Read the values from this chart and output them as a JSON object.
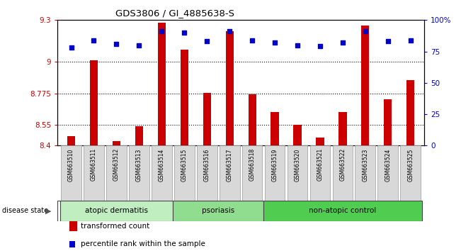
{
  "title": "GDS3806 / GI_4885638-S",
  "samples": [
    "GSM663510",
    "GSM663511",
    "GSM663512",
    "GSM663513",
    "GSM663514",
    "GSM663515",
    "GSM663516",
    "GSM663517",
    "GSM663518",
    "GSM663519",
    "GSM663520",
    "GSM663521",
    "GSM663522",
    "GSM663523",
    "GSM663524",
    "GSM663525"
  ],
  "transformed_count": [
    8.47,
    9.01,
    8.43,
    8.54,
    9.28,
    9.09,
    8.78,
    9.22,
    8.77,
    8.64,
    8.55,
    8.46,
    8.64,
    9.26,
    8.73,
    8.87
  ],
  "percentile_rank": [
    78,
    84,
    81,
    80,
    91,
    90,
    83,
    91,
    84,
    82,
    80,
    79,
    82,
    91,
    83,
    84
  ],
  "groups": [
    {
      "name": "atopic dermatitis",
      "start": 0,
      "end": 5,
      "color": "#c0eec0"
    },
    {
      "name": "psoriasis",
      "start": 5,
      "end": 9,
      "color": "#90dd90"
    },
    {
      "name": "non-atopic control",
      "start": 9,
      "end": 16,
      "color": "#50cc50"
    }
  ],
  "ylim_left": [
    8.4,
    9.3
  ],
  "ylim_right": [
    0,
    100
  ],
  "yticks_left": [
    8.4,
    8.55,
    8.775,
    9.0,
    9.3
  ],
  "ytick_labels_left": [
    "8.4",
    "8.55",
    "8.775",
    "9",
    "9.3"
  ],
  "yticks_right": [
    0,
    25,
    50,
    75,
    100
  ],
  "ytick_labels_right": [
    "0",
    "25",
    "50",
    "75",
    "100%"
  ],
  "bar_color": "#cc0000",
  "dot_color": "#0000cc",
  "bar_bottom": 8.4,
  "grid_color": "#000000",
  "bg_color": "#ffffff",
  "plot_bg": "#ffffff",
  "left_axis_color": "#cc0000",
  "right_axis_color": "#0000cc",
  "xtick_bg": "#d8d8d8"
}
